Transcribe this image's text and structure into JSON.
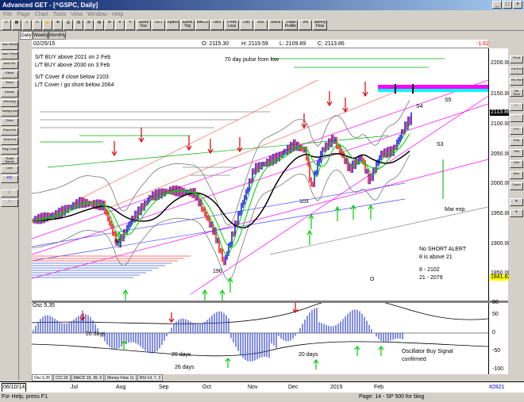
{
  "window": {
    "title": "Advanced GET - [^GSPC, Daily]",
    "controls": [
      "_",
      "□",
      "×"
    ]
  },
  "menu": [
    "File",
    "Page",
    "Chart",
    "Tools",
    "View",
    "Window",
    "Help"
  ],
  "toolbar_buttons": [
    "Elliott Osc",
    "OCI",
    "Xpdex",
    "Elliott Trig",
    "MACD",
    "OBV",
    "Profit Loss",
    "Osc",
    "RSI",
    "Stock",
    "Trade Profile",
    "Vol",
    "Money Flow"
  ],
  "left_tools": [
    "Auto Elliott",
    "Auto Trend",
    "Auto Fib",
    "Elliott",
    "Gann",
    "Dmark",
    "Mov Avg",
    "Swing Line",
    "Chan",
    "Price Ext",
    "Time Ext",
    "Reg Chan",
    "Trade Bands",
    "Line",
    "XTL"
  ],
  "right_tools": [
    "Pivot",
    "Fib Ext",
    "Fib Ret",
    "Fib Time",
    "PTI",
    "Proj",
    "Text",
    "Line",
    "Box",
    "Zoom"
  ],
  "tabs": [
    {
      "label": "Daily",
      "active": true
    },
    {
      "label": "Weekly",
      "active": false
    },
    {
      "label": "Monthly",
      "active": false
    }
  ],
  "info": {
    "date": "02/25/15",
    "open": "O: 2115.30",
    "high": "H: 2119.59",
    "low": "L: 2109.89",
    "close": "C: 2113.86",
    "change": "-1.62"
  },
  "annotations": {
    "st_buy": "S/T BUY above 2021 on 2 Feb",
    "lt_buy": "L/T BUY above 2030 on 3 Feb",
    "st_cover": "S/T Cover if close below 2103",
    "lt_cover": "L/T Cover / go short below 2064",
    "pulse": "70 day pulse from low",
    "s4": "S4",
    "s5": "S5",
    "s3": "S3",
    "low_82": "82",
    "low_103": "103",
    "low_190": "190",
    "wave_o": "O",
    "mar_exp": "Mar exp.",
    "no_short_1": "No SHORT ALERT",
    "no_short_2": "8 is above 21",
    "ma8": "8   - 2102",
    "ma21": "21 - 2079",
    "osc_days_1": "20 days",
    "osc_days_2": "20 days",
    "osc_days_3": "26 days",
    "osc_days_4": "20 days",
    "osc_signal_1": "Oscillator Buy Signal",
    "osc_signal_2": "confirmed"
  },
  "price_axis": {
    "labels": [
      "2200.00",
      "2150.00",
      "2100.00",
      "2050.00",
      "2000.00",
      "1950.00",
      "1900.00",
      "1850.00"
    ],
    "last": "2113.86",
    "second": "1841.82"
  },
  "osc_axis": {
    "labels": [
      "80",
      "50",
      "0",
      "-50",
      "-100"
    ]
  },
  "osc_label": "Osc 5,35",
  "osc_tabs": [
    "Osc 5,35",
    "CCI 20",
    "MACD 19, 39, 9",
    "Money Flow 11",
    "RSI 14, 7, 3"
  ],
  "date_axis": {
    "start": "06/10/14",
    "months": [
      "Jul",
      "Aug",
      "Sep",
      "Oct",
      "Nov",
      "Dec",
      "2015",
      "Feb"
    ],
    "code": "#2821"
  },
  "status": {
    "help": "For Help, press F1",
    "page": "Page: 14 - SP 500 for blog"
  },
  "colors": {
    "up": "#0000ff",
    "down": "#ff0000",
    "arrow_up": "#00cc00",
    "arrow_down": "#dd0000",
    "ma_black": "#000000",
    "ma_green": "#00cc00",
    "band": "#ff00ff",
    "cyan": "#00ffff"
  }
}
